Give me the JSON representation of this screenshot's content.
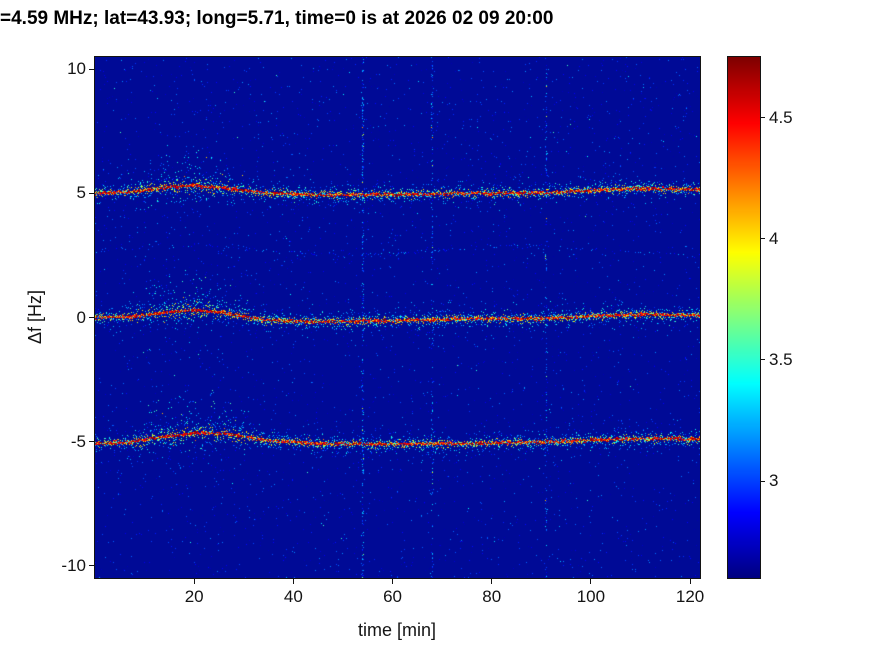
{
  "chart_data": {
    "type": "heatmap",
    "title": "=4.59 MHz;  lat=43.93; long=5.71, time=0 is at 2026 02 09 20:00",
    "xlabel": "time [min]",
    "ylabel": "Δf [Hz]",
    "xlim": [
      0,
      122
    ],
    "ylim": [
      -10.5,
      10.5
    ],
    "xticks": [
      20,
      40,
      60,
      80,
      100,
      120
    ],
    "yticks": [
      10,
      5,
      0,
      -5,
      -10
    ],
    "grid": false,
    "colormap": "jet",
    "background_color": "#000a96",
    "colorbar": {
      "position": "right",
      "min": 2.6,
      "max": 4.75,
      "ticks": [
        4.5,
        4,
        3.5,
        3
      ]
    },
    "traces": [
      {
        "name": "upper-sideband-plus-5hz",
        "center_hz": 5,
        "profile_t": [
          0,
          8,
          14,
          20,
          27,
          34,
          45,
          60,
          75,
          90,
          100,
          110,
          122
        ],
        "profile_dhz": [
          0.0,
          0.08,
          0.25,
          0.32,
          0.2,
          0.02,
          -0.05,
          -0.05,
          0.0,
          0.02,
          0.12,
          0.2,
          0.15
        ],
        "cloud_t": [
          5,
          32
        ],
        "cloud_height_hz": 1.5
      },
      {
        "name": "carrier-0hz",
        "center_hz": 0,
        "profile_t": [
          0,
          8,
          14,
          20,
          27,
          34,
          45,
          60,
          75,
          90,
          100,
          110,
          122
        ],
        "profile_dhz": [
          0.0,
          0.05,
          0.2,
          0.3,
          0.15,
          -0.1,
          -0.18,
          -0.12,
          -0.05,
          -0.05,
          0.05,
          0.12,
          0.1
        ],
        "cloud_t": [
          5,
          32
        ],
        "cloud_height_hz": 1.5
      },
      {
        "name": "lower-sideband-minus-5hz",
        "center_hz": -5,
        "profile_t": [
          0,
          8,
          14,
          20,
          27,
          34,
          45,
          60,
          75,
          90,
          100,
          110,
          122
        ],
        "profile_dhz": [
          -0.1,
          0.0,
          0.2,
          0.35,
          0.3,
          0.05,
          -0.08,
          -0.1,
          -0.08,
          -0.02,
          0.05,
          0.12,
          0.1
        ],
        "cloud_t": [
          5,
          34
        ],
        "cloud_height_hz": 1.7
      }
    ],
    "faint_trace": {
      "center_hz": 2.7
    },
    "vertical_artifacts": [
      {
        "t_min": 54,
        "strength": 1.0
      },
      {
        "t_min": 68,
        "strength": 0.6
      },
      {
        "t_min": 91,
        "strength": 0.5
      }
    ]
  }
}
